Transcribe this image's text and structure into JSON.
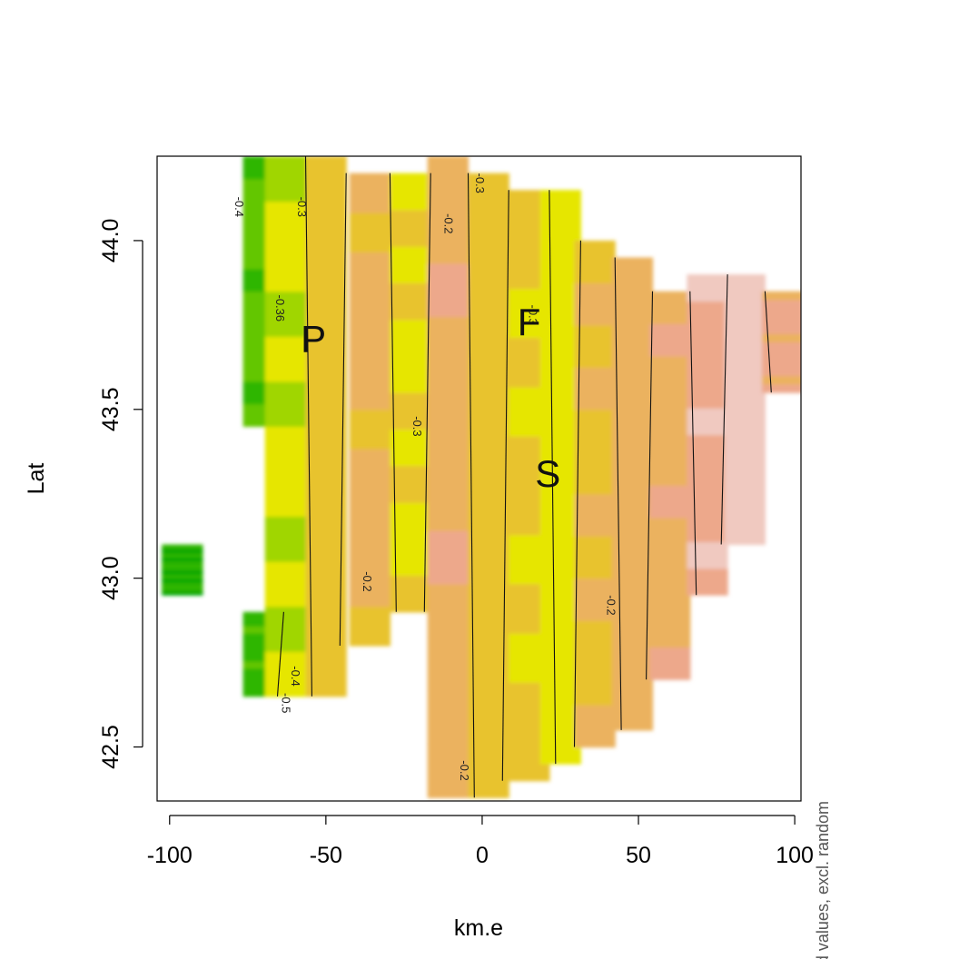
{
  "chart_data": {
    "type": "heatmap",
    "title": "",
    "xlabel": "km.e",
    "ylabel": "Lat",
    "side_note": "fitted values, excl. random",
    "xlim": [
      -104,
      102
    ],
    "ylim": [
      42.34,
      44.25
    ],
    "x_ticks": [
      -100,
      -50,
      0,
      50,
      100
    ],
    "y_ticks": [
      42.5,
      43.0,
      43.5,
      44.0
    ],
    "x_tick_labels": [
      "-100",
      "-50",
      "0",
      "50",
      "100"
    ],
    "y_tick_labels": [
      "42.5",
      "43.0",
      "43.5",
      "44.0"
    ],
    "palette": [
      "#00a600",
      "#2db600",
      "#63c600",
      "#a0d600",
      "#e6e600",
      "#e8c32e",
      "#ebb25e",
      "#eda88b",
      "#f0c9c0"
    ],
    "columns": [
      {
        "x": -96,
        "y_from": 42.95,
        "y_to": 43.1,
        "value": -0.45
      },
      {
        "x": -70,
        "y_from": 43.45,
        "y_to": 44.25,
        "value": -0.4
      },
      {
        "x": -70,
        "y_from": 42.65,
        "y_to": 42.9,
        "value": -0.42
      },
      {
        "x": -63,
        "y_from": 42.65,
        "y_to": 44.25,
        "value": -0.32
      },
      {
        "x": -50,
        "y_from": 42.65,
        "y_to": 44.25,
        "value": -0.26
      },
      {
        "x": -36,
        "y_from": 42.8,
        "y_to": 44.2,
        "value": -0.22
      },
      {
        "x": -23,
        "y_from": 42.9,
        "y_to": 44.2,
        "value": -0.28
      },
      {
        "x": -11,
        "y_from": 42.35,
        "y_to": 44.25,
        "value": -0.2
      },
      {
        "x": 2,
        "y_from": 42.35,
        "y_to": 44.2,
        "value": -0.25
      },
      {
        "x": 15,
        "y_from": 42.4,
        "y_to": 44.15,
        "value": -0.27
      },
      {
        "x": 25,
        "y_from": 42.45,
        "y_to": 44.15,
        "value": -0.3
      },
      {
        "x": 36,
        "y_from": 42.5,
        "y_to": 44.0,
        "value": -0.24
      },
      {
        "x": 48,
        "y_from": 42.55,
        "y_to": 43.95,
        "value": -0.21
      },
      {
        "x": 60,
        "y_from": 42.7,
        "y_to": 43.85,
        "value": -0.2
      },
      {
        "x": 72,
        "y_from": 42.95,
        "y_to": 43.9,
        "value": -0.16
      },
      {
        "x": 84,
        "y_from": 43.1,
        "y_to": 43.9,
        "value": -0.12
      },
      {
        "x": 96,
        "y_from": 43.55,
        "y_to": 43.85,
        "value": -0.18
      }
    ],
    "contours": [
      {
        "label": "-0.4",
        "x": -79,
        "y": 44.1
      },
      {
        "label": "-0.3",
        "x": -59,
        "y": 44.1
      },
      {
        "label": "-0.36",
        "x": -66,
        "y": 43.8
      },
      {
        "label": "-0.3",
        "x": -22,
        "y": 43.45
      },
      {
        "label": "-0.2",
        "x": -12,
        "y": 44.05
      },
      {
        "label": "-0.3",
        "x": -2,
        "y": 44.17
      },
      {
        "label": "-0.3",
        "x": 15,
        "y": 43.78
      },
      {
        "label": "-0.2",
        "x": -38,
        "y": 42.99
      },
      {
        "label": "-0.2",
        "x": 40,
        "y": 42.92
      },
      {
        "label": "-0.4",
        "x": -61,
        "y": 42.71
      },
      {
        "label": "-0.5",
        "x": -64,
        "y": 42.63
      },
      {
        "label": "-0.2",
        "x": -7,
        "y": 42.43
      }
    ],
    "points": [
      {
        "label": "P",
        "x": -54,
        "y": 43.7
      },
      {
        "label": "F",
        "x": 15,
        "y": 43.75
      },
      {
        "label": "S",
        "x": 21,
        "y": 43.3
      }
    ]
  }
}
